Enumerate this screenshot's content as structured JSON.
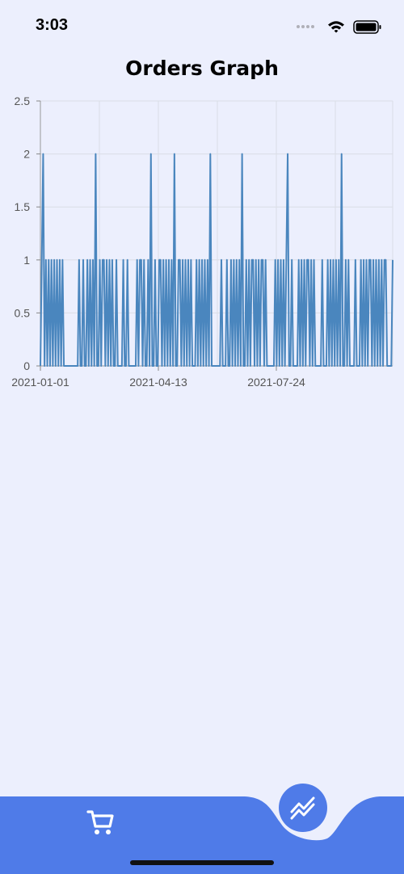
{
  "status_bar": {
    "time": "3:03",
    "icons": [
      "signal-dots-icon",
      "wifi-icon",
      "battery-icon"
    ]
  },
  "page": {
    "title": "Orders Graph"
  },
  "chart_data": {
    "type": "line",
    "title": "Orders Graph",
    "xlabel": "",
    "ylabel": "",
    "x_tick_labels": [
      "2021-01-01",
      "2021-04-13",
      "2021-07-24"
    ],
    "y_ticks": [
      "0",
      "0.5",
      "1",
      "1.5",
      "2",
      "2.5"
    ],
    "ylim": [
      0,
      2.5
    ],
    "grid": true,
    "series": [
      {
        "color": "#4A86BE",
        "x_start": "2021-01-01",
        "x_end": "2021-10-30",
        "values": [
          0,
          1,
          2,
          0,
          1,
          0,
          1,
          0,
          1,
          0,
          1,
          0,
          1,
          0,
          1,
          0,
          1,
          0,
          0,
          0,
          0,
          0,
          0,
          0,
          0,
          0,
          0,
          0,
          1,
          0,
          0,
          1,
          0,
          0,
          1,
          0,
          1,
          0,
          1,
          0,
          2,
          0,
          0,
          1,
          0,
          1,
          1,
          0,
          1,
          0,
          1,
          0,
          1,
          0,
          0,
          1,
          0,
          0,
          0,
          0,
          1,
          0,
          0,
          1,
          0,
          0,
          0,
          0,
          0,
          0,
          1,
          0,
          1,
          1,
          0,
          1,
          0,
          0,
          1,
          0,
          2,
          0,
          0,
          1,
          0,
          0,
          1,
          1,
          0,
          1,
          0,
          1,
          0,
          1,
          0,
          1,
          0,
          2,
          0,
          0,
          1,
          1,
          0,
          1,
          0,
          1,
          0,
          1,
          0,
          1,
          0,
          0,
          0,
          1,
          0,
          1,
          0,
          1,
          0,
          1,
          0,
          1,
          0,
          2,
          0,
          0,
          0,
          0,
          0,
          0,
          0,
          1,
          0,
          0,
          0,
          1,
          0,
          0,
          1,
          0,
          1,
          0,
          1,
          0,
          1,
          0,
          2,
          0,
          0,
          1,
          0,
          1,
          0,
          1,
          1,
          0,
          1,
          0,
          1,
          0,
          1,
          1,
          0,
          1,
          0,
          0,
          0,
          0,
          0,
          0,
          1,
          0,
          1,
          0,
          1,
          0,
          1,
          0,
          1,
          2,
          0,
          0,
          1,
          0,
          0,
          0,
          0,
          1,
          0,
          1,
          0,
          1,
          0,
          1,
          1,
          0,
          1,
          0,
          1,
          0,
          0,
          0,
          0,
          0,
          1,
          0,
          0,
          0,
          1,
          0,
          1,
          0,
          1,
          0,
          1,
          0,
          1,
          0,
          2,
          0,
          0,
          1,
          0,
          1,
          0,
          0,
          0,
          0,
          1,
          0,
          0,
          0,
          1,
          0,
          1,
          0,
          1,
          0,
          1,
          1,
          0,
          1,
          0,
          1,
          0,
          1,
          0,
          1,
          0,
          1,
          1,
          0,
          0,
          0,
          0,
          1
        ]
      }
    ]
  },
  "tab_bar": {
    "items": [
      {
        "icon": "cart-icon",
        "active": false
      },
      {
        "icon": "trending-graph-icon",
        "active": true
      }
    ],
    "color": "#4F7BE8"
  }
}
